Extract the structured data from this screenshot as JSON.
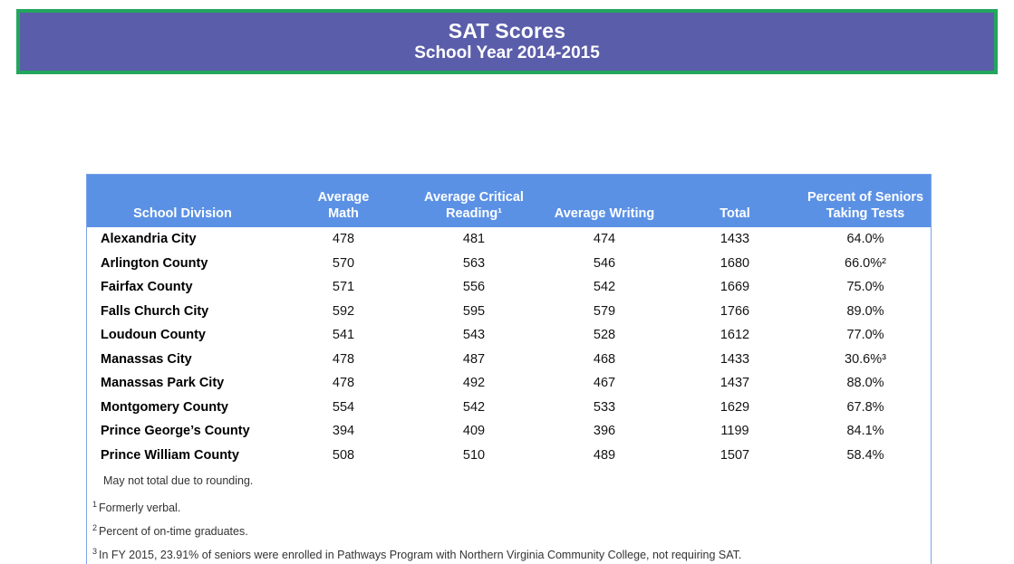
{
  "banner": {
    "title": "SAT Scores",
    "subtitle": "School Year 2014-2015",
    "background_color": "#5a5da9",
    "border_color": "#22a65e"
  },
  "table": {
    "header_color": "#5b91e5",
    "outer_border_color": "#7ba3e6",
    "columns": [
      "School Division",
      "Average\nMath",
      "Average Critical\nReading¹",
      "Average Writing",
      "Total",
      "Percent of Seniors\nTaking Tests"
    ],
    "rows": [
      [
        "Alexandria City",
        "478",
        "481",
        "474",
        "1433",
        "64.0%"
      ],
      [
        "Arlington County",
        "570",
        "563",
        "546",
        "1680",
        "66.0%²"
      ],
      [
        "Fairfax County",
        "571",
        "556",
        "542",
        "1669",
        "75.0%"
      ],
      [
        "Falls Church City",
        "592",
        "595",
        "579",
        "1766",
        "89.0%"
      ],
      [
        "Loudoun County",
        "541",
        "543",
        "528",
        "1612",
        "77.0%"
      ],
      [
        "Manassas City",
        "478",
        "487",
        "468",
        "1433",
        "30.6%³"
      ],
      [
        "Manassas Park City",
        "478",
        "492",
        "467",
        "1437",
        "88.0%"
      ],
      [
        "Montgomery County",
        "554",
        "542",
        "533",
        "1629",
        "67.8%"
      ],
      [
        "Prince George’s County",
        "394",
        "409",
        "396",
        "1199",
        "84.1%"
      ],
      [
        "Prince William County",
        "508",
        "510",
        "489",
        "1507",
        "58.4%"
      ]
    ],
    "footnotes": [
      {
        "marker": "",
        "text": "May not total due to rounding."
      },
      {
        "marker": "1",
        "text": "Formerly verbal."
      },
      {
        "marker": "2",
        "text": "Percent of on-time graduates."
      },
      {
        "marker": "3",
        "text": "In FY 2015, 23.91% of seniors were enrolled in Pathways Program with Northern Virginia Community College, not requiring SAT."
      }
    ]
  }
}
